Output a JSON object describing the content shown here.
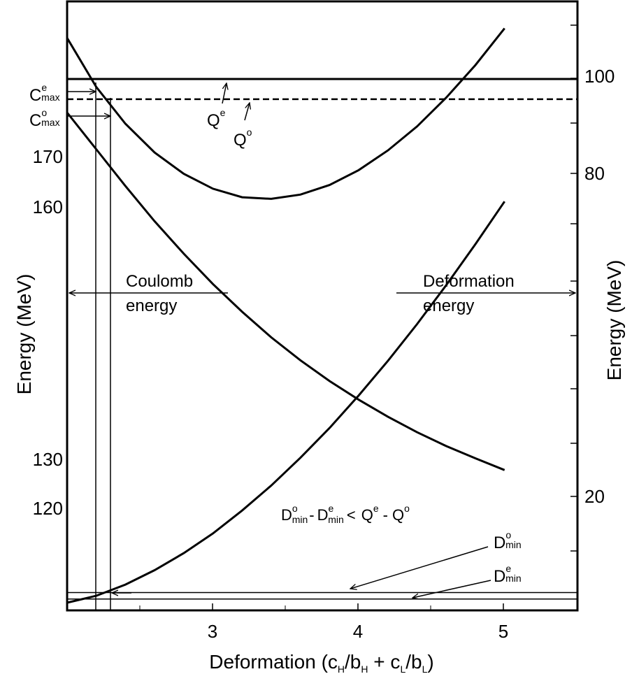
{
  "chart_data": {
    "type": "line",
    "xlabel": {
      "base": "Deformation (c",
      "parts": [
        [
          "H",
          "/b"
        ],
        [
          "H",
          " + c"
        ],
        [
          "L",
          "/b"
        ],
        [
          "L",
          ")"
        ]
      ]
    },
    "xlim": [
      2,
      5.5
    ],
    "x_ticks": [
      "3",
      "4",
      "5"
    ],
    "left_axis": {
      "label": "Energy (MeV)",
      "ticks": [
        {
          "label": "120",
          "y": 120
        },
        {
          "label": "130",
          "y": 130
        },
        {
          "label": "160",
          "y": 160
        },
        {
          "label": "170",
          "y": 170
        }
      ]
    },
    "right_axis": {
      "label": "Energy (MeV)",
      "ticks": [
        {
          "label": "20",
          "y": 20
        },
        {
          "label": "80",
          "y": 80
        },
        {
          "label": "100",
          "y": 100
        }
      ]
    },
    "series": [
      {
        "id": "coulomb",
        "x": [
          2.0,
          2.2,
          2.4,
          2.6,
          2.8,
          3.0,
          3.2,
          3.4,
          3.6,
          3.8,
          4.0,
          4.2,
          4.4,
          4.6,
          4.8,
          5.0
        ],
        "y": [
          92.0,
          85.1,
          78.2,
          71.6,
          65.5,
          59.8,
          54.6,
          49.8,
          45.5,
          41.6,
          38.1,
          34.9,
          32.0,
          29.4,
          27.1,
          24.9
        ]
      },
      {
        "id": "deformation",
        "x": [
          2.0,
          2.2,
          2.4,
          2.6,
          2.8,
          3.0,
          3.2,
          3.4,
          3.6,
          3.8,
          4.0,
          4.2,
          4.4,
          4.6,
          4.8,
          5.0
        ],
        "y": [
          0.0,
          1.3,
          3.4,
          6.1,
          9.3,
          13.0,
          17.3,
          22.0,
          27.2,
          32.8,
          38.9,
          45.4,
          52.3,
          59.6,
          67.3,
          75.3
        ]
      },
      {
        "id": "total",
        "x": [
          2.0,
          2.2,
          2.4,
          2.6,
          2.8,
          3.0,
          3.2,
          3.4,
          3.6,
          3.8,
          4.0,
          4.2,
          4.4,
          4.6,
          4.8,
          5.0
        ],
        "y": [
          106.0,
          96.8,
          89.9,
          84.5,
          80.5,
          77.7,
          76.1,
          75.8,
          76.6,
          78.4,
          81.2,
          84.9,
          89.4,
          94.8,
          100.9,
          107.8
        ]
      }
    ],
    "h_lines": [
      {
        "id": "Qe",
        "y": 98.3,
        "style": "solid"
      },
      {
        "id": "Qo",
        "y": 94.5,
        "style": "dashed"
      },
      {
        "id": "Dmin-o",
        "y": 1.9,
        "style": "solid"
      },
      {
        "id": "Dmin-e",
        "y": 0.7,
        "style": "solid"
      }
    ],
    "annotations": {
      "C_e": {
        "main": "C",
        "sup": "e",
        "sub": "max"
      },
      "C_o": {
        "main": "C",
        "sup": "o",
        "sub": "max"
      },
      "Q_e": {
        "main": "Q",
        "sup": "e"
      },
      "Q_o": {
        "main": "Q",
        "sup": "o"
      },
      "D_o": {
        "main": "D",
        "sup": "o",
        "sub": "min"
      },
      "D_e": {
        "main": "D",
        "sup": "e",
        "sub": "min"
      },
      "coulomb_line1": "Coulomb",
      "coulomb_line2": "energy",
      "deform_line1": "Deformation",
      "deform_line2": "energy",
      "formula": {
        "d": "D",
        "min": "min",
        "o": "o",
        "e": "e",
        "dash": "-",
        "lt": "<",
        "q": "Q"
      }
    }
  }
}
